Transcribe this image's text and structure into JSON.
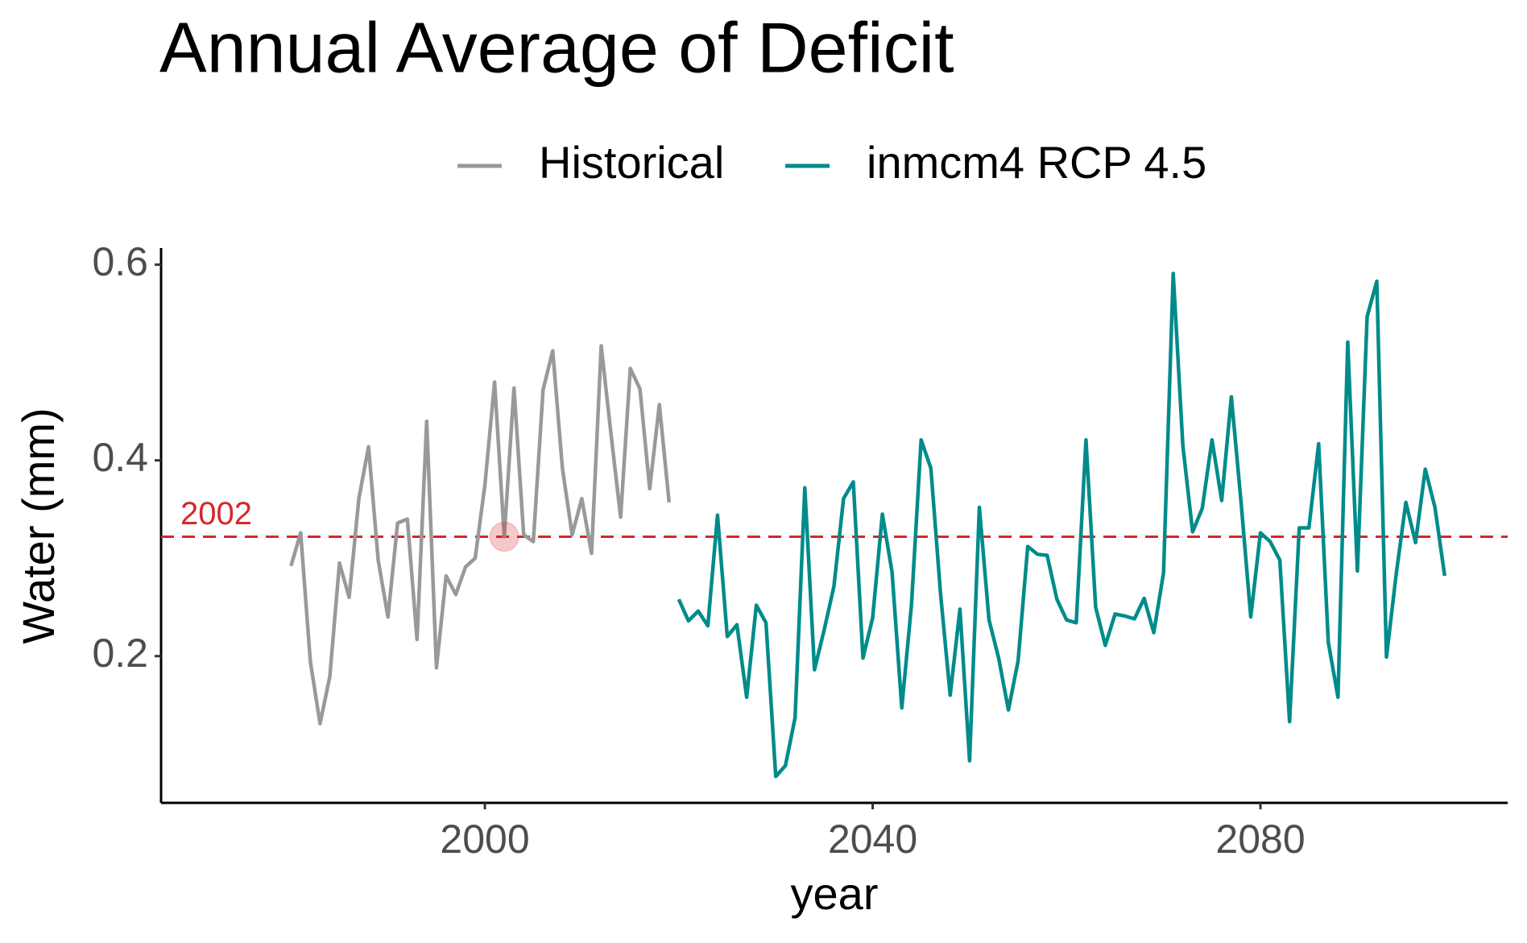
{
  "chart_data": {
    "type": "line",
    "title": "Annual Average of Deficit",
    "x_label": "year",
    "y_label": "Water (mm)",
    "xlim": [
      1966.6,
      2105.5
    ],
    "xticks": [
      2000,
      2040,
      2080
    ],
    "ylim": [
      0.05,
      0.617
    ],
    "yticks": [
      0.2,
      0.4,
      0.6
    ],
    "grid": false,
    "legend": "top",
    "reference": {
      "year": 2002,
      "color": "#d62728"
    },
    "series": [
      {
        "name": "Historical",
        "color": "#999999",
        "x": [
          1980,
          1981,
          1982,
          1983,
          1984,
          1985,
          1986,
          1987,
          1988,
          1989,
          1990,
          1991,
          1992,
          1993,
          1994,
          1995,
          1996,
          1997,
          1998,
          1999,
          2000,
          2001,
          2002,
          2003,
          2004,
          2005,
          2006,
          2007,
          2008,
          2009,
          2010,
          2011,
          2012,
          2013,
          2014,
          2015,
          2016,
          2017,
          2018,
          2019
        ],
        "values": [
          0.292,
          0.326,
          0.194,
          0.131,
          0.179,
          0.295,
          0.26,
          0.361,
          0.414,
          0.298,
          0.24,
          0.336,
          0.34,
          0.217,
          0.44,
          0.188,
          0.282,
          0.263,
          0.291,
          0.3,
          0.375,
          0.48,
          0.322,
          0.474,
          0.324,
          0.317,
          0.472,
          0.512,
          0.392,
          0.324,
          0.361,
          0.305,
          0.517,
          0.428,
          0.342,
          0.494,
          0.473,
          0.371,
          0.457,
          0.357
        ]
      },
      {
        "name": "inmcm4 RCP 4.5",
        "color": "#008b8b",
        "x": [
          2020,
          2021,
          2022,
          2023,
          2024,
          2025,
          2026,
          2027,
          2028,
          2029,
          2030,
          2031,
          2032,
          2033,
          2034,
          2035,
          2036,
          2037,
          2038,
          2039,
          2040,
          2041,
          2042,
          2043,
          2044,
          2045,
          2046,
          2047,
          2048,
          2049,
          2050,
          2051,
          2052,
          2053,
          2054,
          2055,
          2056,
          2057,
          2058,
          2059,
          2060,
          2061,
          2062,
          2063,
          2064,
          2065,
          2066,
          2067,
          2068,
          2069,
          2070,
          2071,
          2072,
          2073,
          2074,
          2075,
          2076,
          2077,
          2078,
          2079,
          2080,
          2081,
          2082,
          2083,
          2084,
          2085,
          2086,
          2087,
          2088,
          2089,
          2090,
          2091,
          2092,
          2093,
          2094,
          2095,
          2096,
          2097,
          2098,
          2099
        ],
        "values": [
          0.258,
          0.236,
          0.246,
          0.231,
          0.344,
          0.22,
          0.232,
          0.158,
          0.252,
          0.234,
          0.077,
          0.088,
          0.137,
          0.372,
          0.186,
          0.227,
          0.271,
          0.361,
          0.378,
          0.198,
          0.239,
          0.345,
          0.286,
          0.147,
          0.252,
          0.421,
          0.392,
          0.264,
          0.16,
          0.248,
          0.093,
          0.352,
          0.237,
          0.198,
          0.145,
          0.195,
          0.312,
          0.304,
          0.303,
          0.258,
          0.237,
          0.234,
          0.421,
          0.25,
          0.211,
          0.243,
          0.241,
          0.238,
          0.259,
          0.224,
          0.285,
          0.591,
          0.415,
          0.327,
          0.351,
          0.421,
          0.359,
          0.465,
          0.357,
          0.24,
          0.326,
          0.317,
          0.298,
          0.133,
          0.331,
          0.331,
          0.417,
          0.214,
          0.158,
          0.521,
          0.287,
          0.547,
          0.583,
          0.199,
          0.284,
          0.357,
          0.316,
          0.391,
          0.352,
          0.282
        ]
      }
    ]
  }
}
